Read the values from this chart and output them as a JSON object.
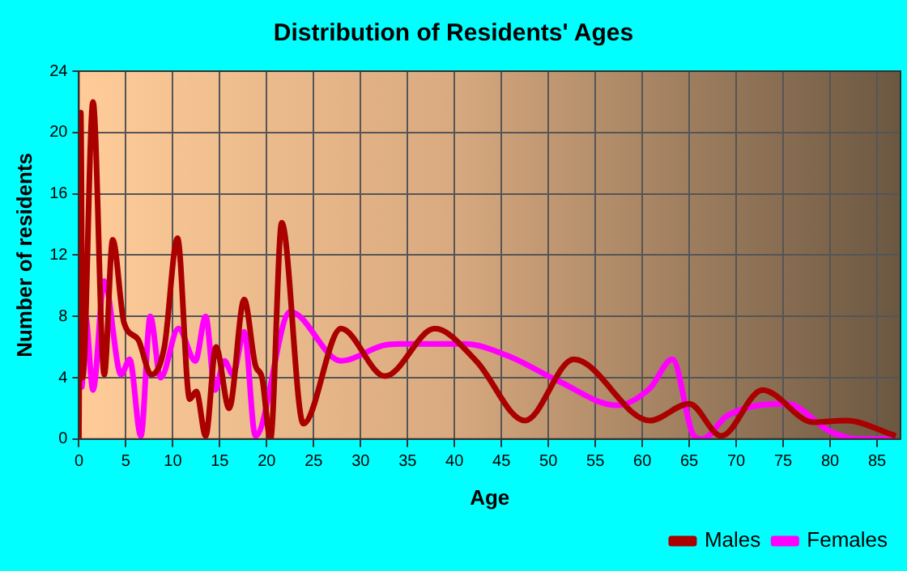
{
  "chart_data": {
    "type": "line",
    "title": "Distribution of Residents' Ages",
    "xlabel": "Age",
    "ylabel": "Number of residents",
    "xlim": [
      0,
      87.5
    ],
    "xticks": [
      0,
      5,
      10,
      15,
      20,
      25,
      30,
      35,
      40,
      45,
      50,
      55,
      60,
      65,
      70,
      75,
      80,
      85
    ],
    "ylim": [
      0,
      24
    ],
    "yticks": [
      0,
      4,
      8,
      12,
      16,
      20,
      24
    ],
    "grid": true,
    "legend": "bottom right",
    "marker": "none",
    "line_style": "solid",
    "series": [
      {
        "name": "Males",
        "color": "#aa0000",
        "x": [
          0,
          0.2,
          0.4,
          1.5,
          2.7,
          3.6,
          4.8,
          6.3,
          7.7,
          9.1,
          10.5,
          11.8,
          12.5,
          13.5,
          14.6,
          16,
          17.6,
          18.8,
          19.5,
          20.4,
          21.6,
          23.9,
          27.9,
          32.6,
          37.9,
          42.3,
          47.5,
          52.7,
          60.8,
          65,
          68.4,
          72.8,
          78.2,
          81.7,
          87
        ],
        "values": [
          0,
          21.3,
          4,
          22,
          4.2,
          13,
          7.6,
          6.5,
          4.2,
          6,
          13.1,
          2.6,
          3.1,
          0.2,
          6,
          2,
          9.1,
          4.8,
          4,
          0,
          14.1,
          1,
          7.2,
          4.1,
          7.2,
          5.1,
          1.2,
          5.2,
          1.2,
          2.3,
          0.2,
          3.2,
          1.1,
          1.2,
          0.2
        ]
      },
      {
        "name": "Females",
        "color": "#ff00ff",
        "x": [
          0,
          0.3,
          0.7,
          1.5,
          2.7,
          4.5,
          5.4,
          6.6,
          7.6,
          8.7,
          10.6,
          12.4,
          13.5,
          14.5,
          15.5,
          16.4,
          17.6,
          18.8,
          22.5,
          27.9,
          32.4,
          34.1,
          41.1,
          45.8,
          51,
          57.3,
          60.8,
          63.2,
          65.5,
          66.4,
          69,
          75.4,
          80,
          83,
          87
        ],
        "values": [
          4,
          3.4,
          8,
          3.2,
          10.3,
          4.2,
          5.2,
          0.2,
          8,
          4,
          7.2,
          5.1,
          8,
          3.2,
          5.1,
          4.2,
          7,
          0.2,
          8.3,
          5.1,
          6.1,
          6.2,
          6.2,
          5.4,
          3.8,
          2.2,
          3.3,
          5.2,
          0.2,
          0,
          1.5,
          2.3,
          0.5,
          0,
          0
        ]
      }
    ]
  }
}
